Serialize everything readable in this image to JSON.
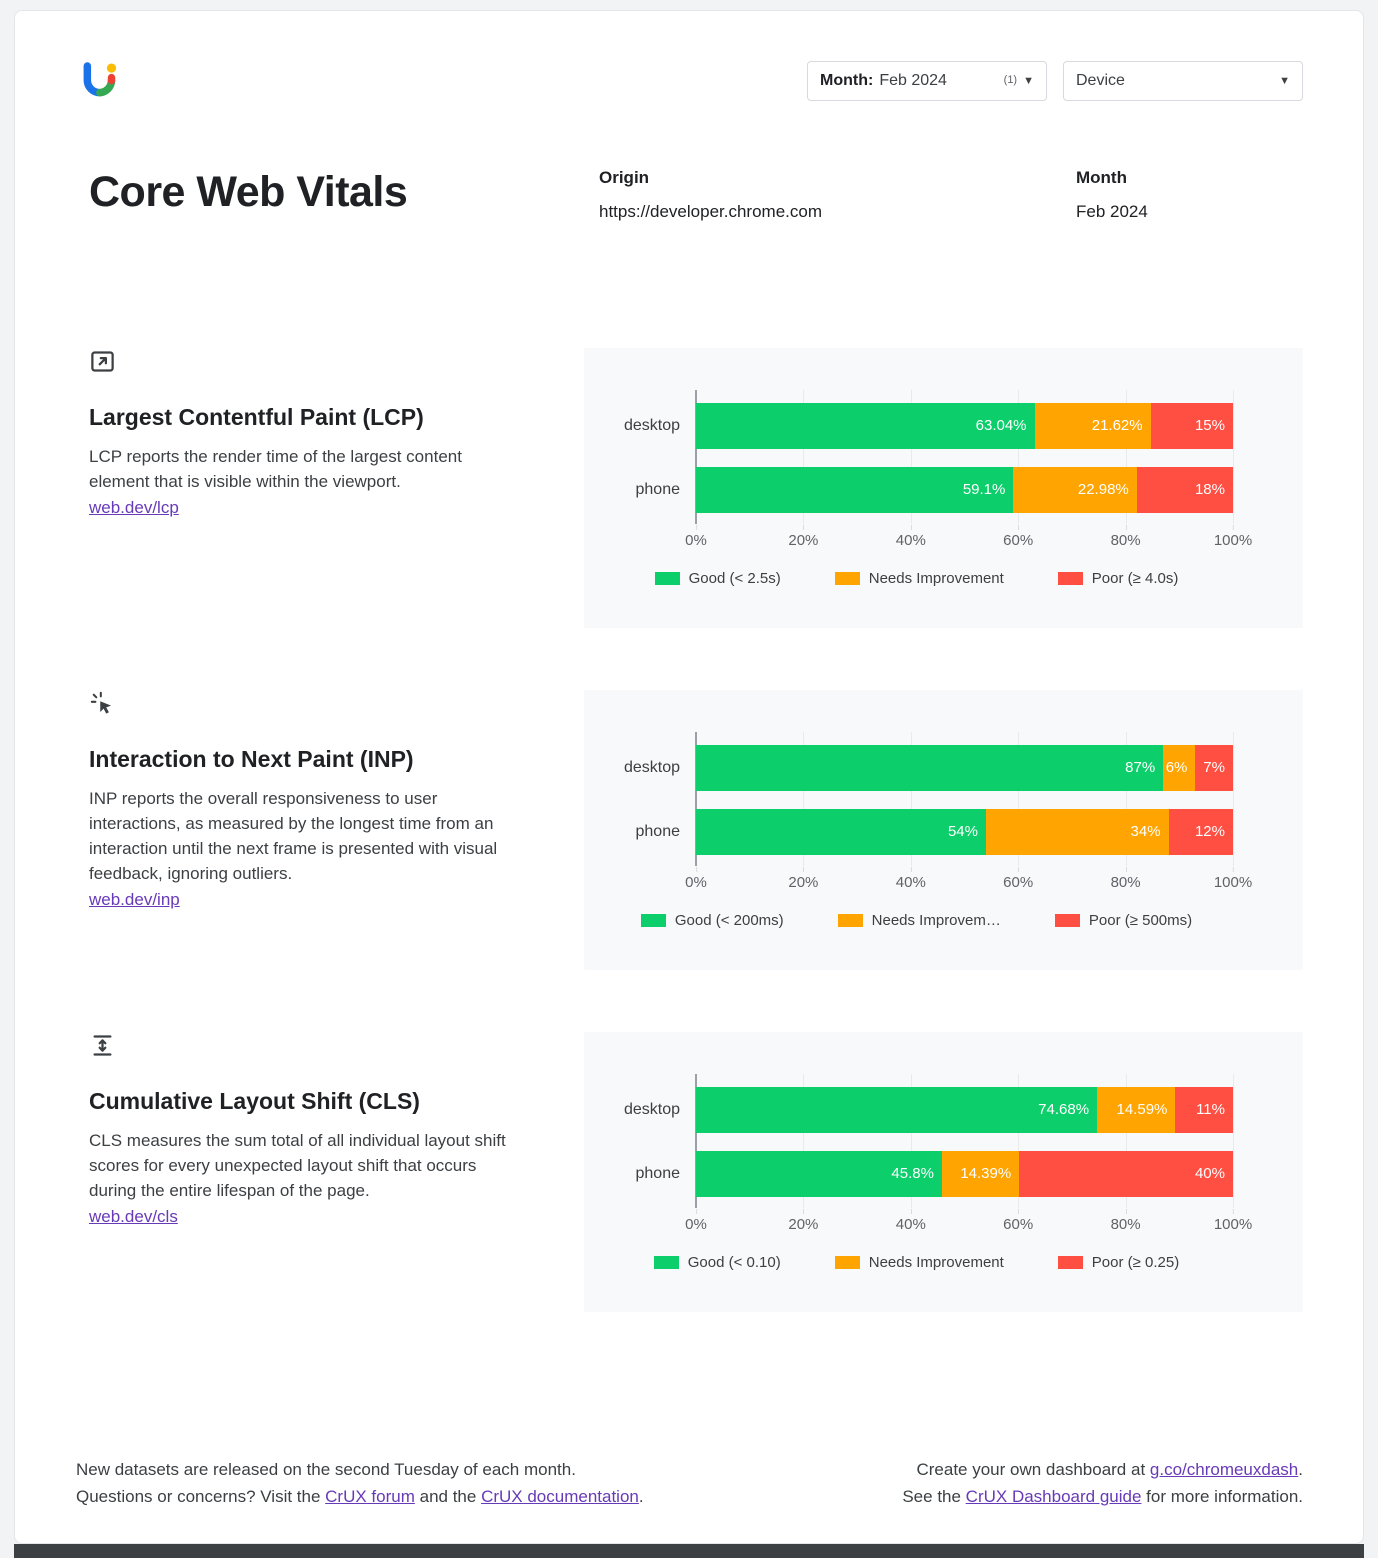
{
  "title": "Core Web Vitals",
  "filters": {
    "month": {
      "label": "Month:",
      "value": "Feb 2024",
      "count": "(1)"
    },
    "device": {
      "label": "Device"
    }
  },
  "meta": {
    "origin_label": "Origin",
    "origin_value": "https://developer.chrome.com",
    "month_label": "Month",
    "month_value": "Feb 2024"
  },
  "colors": {
    "good": "#0cce6b",
    "needs_improvement": "#ffa400",
    "poor": "#ff4e42",
    "link": "#673ab7"
  },
  "sections": [
    {
      "icon": "frame-arrow-icon",
      "title": "Largest Contentful Paint (LCP)",
      "description": "LCP reports the render time of the largest content element that is visible within the viewport.",
      "link": "web.dev/lcp"
    },
    {
      "icon": "cursor-click-icon",
      "title": "Interaction to Next Paint (INP)",
      "description": "INP reports the overall responsiveness to user interactions, as measured by the longest time from an interaction until the next frame is presented with visual feedback, ignoring outliers.",
      "link": "web.dev/inp"
    },
    {
      "icon": "layout-shift-icon",
      "title": "Cumulative Layout Shift (CLS)",
      "description": "CLS measures the sum total of all individual layout shift scores for every unexpected layout shift that occurs during the entire lifespan of the page.",
      "link": "web.dev/cls"
    }
  ],
  "chart_data": [
    {
      "type": "bar",
      "stacked": true,
      "orientation": "horizontal",
      "metric": "LCP",
      "categories": [
        "desktop",
        "phone"
      ],
      "series": [
        {
          "name": "Good (< 2.5s)",
          "color": "#0cce6b",
          "values": [
            63.04,
            59.1
          ],
          "labels": [
            "63.04%",
            "59.1%"
          ]
        },
        {
          "name": "Needs Improvement",
          "color": "#ffa400",
          "values": [
            21.62,
            22.98
          ],
          "labels": [
            "21.62%",
            "22.98%"
          ]
        },
        {
          "name": "Poor (≥ 4.0s)",
          "color": "#ff4e42",
          "values": [
            15.34,
            17.92
          ],
          "labels": [
            "15%",
            "18%"
          ]
        }
      ],
      "xlim": [
        0,
        100
      ],
      "xticks": [
        0,
        20,
        40,
        60,
        80,
        100
      ],
      "xtick_labels": [
        "0%",
        "20%",
        "40%",
        "60%",
        "80%",
        "100%"
      ],
      "legend_position": "bottom"
    },
    {
      "type": "bar",
      "stacked": true,
      "orientation": "horizontal",
      "metric": "INP",
      "categories": [
        "desktop",
        "phone"
      ],
      "series": [
        {
          "name": "Good (< 200ms)",
          "color": "#0cce6b",
          "values": [
            87,
            54
          ],
          "labels": [
            "87%",
            "54%"
          ]
        },
        {
          "name": "Needs Improvem…",
          "color": "#ffa400",
          "values": [
            6,
            34
          ],
          "labels": [
            "6%",
            "34%"
          ]
        },
        {
          "name": "Poor (≥ 500ms)",
          "color": "#ff4e42",
          "values": [
            7,
            12
          ],
          "labels": [
            "7%",
            "12%"
          ]
        }
      ],
      "xlim": [
        0,
        100
      ],
      "xticks": [
        0,
        20,
        40,
        60,
        80,
        100
      ],
      "xtick_labels": [
        "0%",
        "20%",
        "40%",
        "60%",
        "80%",
        "100%"
      ],
      "legend_position": "bottom"
    },
    {
      "type": "bar",
      "stacked": true,
      "orientation": "horizontal",
      "metric": "CLS",
      "categories": [
        "desktop",
        "phone"
      ],
      "series": [
        {
          "name": "Good (< 0.10)",
          "color": "#0cce6b",
          "values": [
            74.68,
            45.8
          ],
          "labels": [
            "74.68%",
            "45.8%"
          ]
        },
        {
          "name": "Needs Improvement",
          "color": "#ffa400",
          "values": [
            14.59,
            14.39
          ],
          "labels": [
            "14.59%",
            "14.39%"
          ]
        },
        {
          "name": "Poor (≥ 0.25)",
          "color": "#ff4e42",
          "values": [
            10.73,
            39.81
          ],
          "labels": [
            "11%",
            "40%"
          ]
        }
      ],
      "xlim": [
        0,
        100
      ],
      "xticks": [
        0,
        20,
        40,
        60,
        80,
        100
      ],
      "xtick_labels": [
        "0%",
        "20%",
        "40%",
        "60%",
        "80%",
        "100%"
      ],
      "legend_position": "bottom"
    }
  ],
  "footer": {
    "left_line1": "New datasets are released on the second Tuesday of each month.",
    "left_line2_prefix": "Questions or concerns? Visit the ",
    "left_line2_link1": "CrUX forum",
    "left_line2_middle": " and the ",
    "left_line2_link2": "CrUX documentation",
    "left_line2_suffix": ".",
    "right_line1_prefix": "Create your own dashboard at ",
    "right_line1_link": "g.co/chromeuxdash",
    "right_line1_suffix": ".",
    "right_line2_prefix": "See the ",
    "right_line2_link": "CrUX Dashboard guide",
    "right_line2_suffix": " for more information."
  }
}
